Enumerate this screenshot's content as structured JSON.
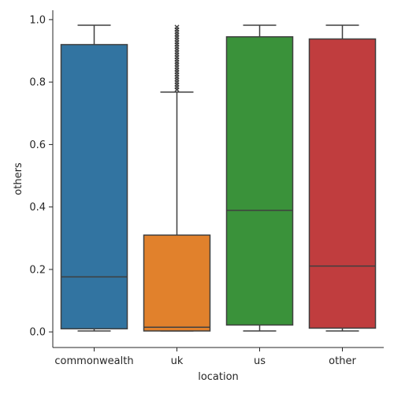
{
  "chart_data": {
    "type": "box",
    "xlabel": "location",
    "ylabel": "others",
    "ylim": [
      -0.05,
      1.03
    ],
    "yticks": [
      0.0,
      0.2,
      0.4,
      0.6,
      0.8,
      1.0
    ],
    "ytick_labels": [
      "0.0",
      "0.2",
      "0.4",
      "0.6",
      "0.8",
      "1.0"
    ],
    "categories": [
      "commonwealth",
      "uk",
      "us",
      "other"
    ],
    "boxes": [
      {
        "category": "commonwealth",
        "color": "#3274a1",
        "whisker_low": 0.003,
        "q1": 0.01,
        "median": 0.176,
        "q3": 0.92,
        "whisker_high": 0.982,
        "outliers": []
      },
      {
        "category": "uk",
        "color": "#e1812c",
        "whisker_low": 0.003,
        "q1": 0.003,
        "median": 0.015,
        "q3": 0.31,
        "whisker_high": 0.768,
        "outliers": [
          0.776,
          0.784,
          0.792,
          0.8,
          0.808,
          0.816,
          0.824,
          0.832,
          0.84,
          0.848,
          0.856,
          0.864,
          0.872,
          0.88,
          0.888,
          0.896,
          0.904,
          0.912,
          0.92,
          0.928,
          0.936,
          0.944,
          0.952,
          0.96,
          0.968,
          0.976
        ]
      },
      {
        "category": "us",
        "color": "#3a923a",
        "whisker_low": 0.003,
        "q1": 0.022,
        "median": 0.389,
        "q3": 0.945,
        "whisker_high": 0.982,
        "outliers": []
      },
      {
        "category": "other",
        "color": "#c03d3e",
        "whisker_low": 0.003,
        "q1": 0.012,
        "median": 0.211,
        "q3": 0.938,
        "whisker_high": 0.982,
        "outliers": []
      }
    ],
    "grid": false,
    "legend": "none"
  }
}
